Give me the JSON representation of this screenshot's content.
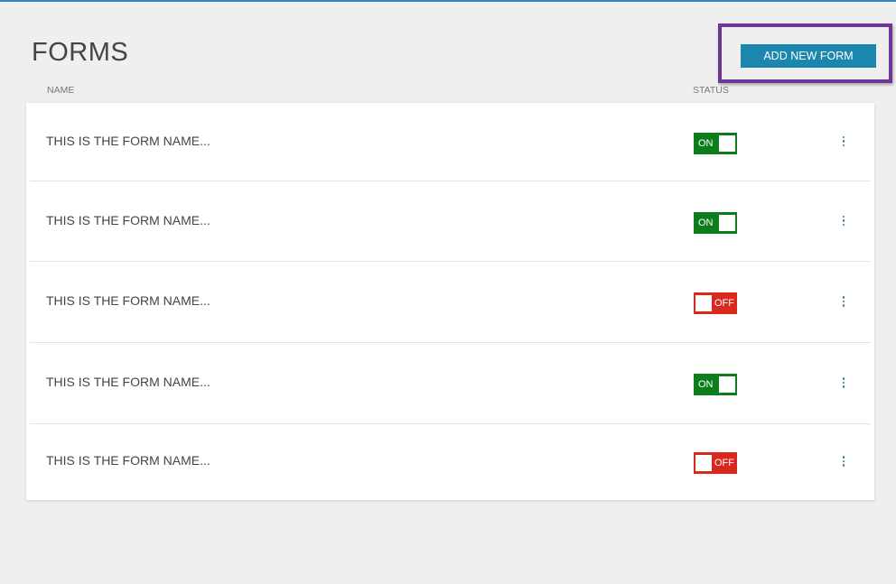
{
  "header": {
    "title": "FORMS",
    "add_button": "ADD NEW FORM"
  },
  "columns": {
    "name": "NAME",
    "status": "STATUS"
  },
  "colors": {
    "on": "#0b7d1c",
    "off": "#d9291e",
    "accent": "#1b87ae",
    "highlight": "#6e3796"
  },
  "forms": [
    {
      "name": "THIS IS THE FORM NAME...",
      "status": "ON"
    },
    {
      "name": "THIS IS THE FORM NAME...",
      "status": "ON"
    },
    {
      "name": "THIS IS THE FORM NAME...",
      "status": "OFF"
    },
    {
      "name": "THIS IS THE FORM NAME...",
      "status": "ON"
    },
    {
      "name": "THIS IS THE FORM NAME...",
      "status": "OFF"
    }
  ]
}
